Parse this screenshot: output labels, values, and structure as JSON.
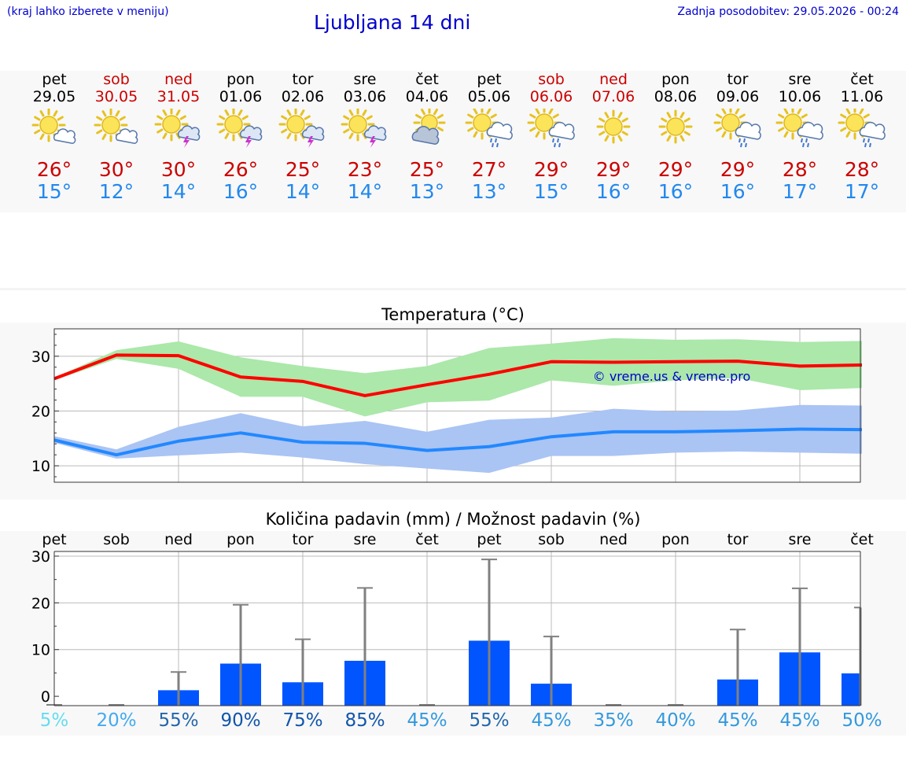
{
  "header": {
    "menu_note": "(kraj lahko izberete v meniju)",
    "title": "Ljubljana 14 dni",
    "last_update": "Zadnja posodobitev: 29.05.2026 - 00:24"
  },
  "days": [
    {
      "name": "pet",
      "date": "29.05",
      "weekend": false,
      "icon": "sun-cloud-icon",
      "tmax": "26°",
      "tmin": "15°"
    },
    {
      "name": "sob",
      "date": "30.05",
      "weekend": true,
      "icon": "sun-cloud-icon",
      "tmax": "30°",
      "tmin": "12°"
    },
    {
      "name": "ned",
      "date": "31.05",
      "weekend": true,
      "icon": "sun-storm-icon",
      "tmax": "30°",
      "tmin": "14°"
    },
    {
      "name": "pon",
      "date": "01.06",
      "weekend": false,
      "icon": "sun-storm-icon",
      "tmax": "26°",
      "tmin": "16°"
    },
    {
      "name": "tor",
      "date": "02.06",
      "weekend": false,
      "icon": "sun-storm-icon",
      "tmax": "25°",
      "tmin": "14°"
    },
    {
      "name": "sre",
      "date": "03.06",
      "weekend": false,
      "icon": "sun-storm-icon",
      "tmax": "23°",
      "tmin": "14°"
    },
    {
      "name": "čet",
      "date": "04.06",
      "weekend": false,
      "icon": "cloud-sun-icon",
      "tmax": "25°",
      "tmin": "13°"
    },
    {
      "name": "pet",
      "date": "05.06",
      "weekend": false,
      "icon": "sun-rain-icon",
      "tmax": "27°",
      "tmin": "13°"
    },
    {
      "name": "sob",
      "date": "06.06",
      "weekend": true,
      "icon": "sun-rain-icon",
      "tmax": "29°",
      "tmin": "15°"
    },
    {
      "name": "ned",
      "date": "07.06",
      "weekend": true,
      "icon": "sun-icon",
      "tmax": "29°",
      "tmin": "16°"
    },
    {
      "name": "pon",
      "date": "08.06",
      "weekend": false,
      "icon": "sun-icon",
      "tmax": "29°",
      "tmin": "16°"
    },
    {
      "name": "tor",
      "date": "09.06",
      "weekend": false,
      "icon": "sun-rain-icon",
      "tmax": "29°",
      "tmin": "16°"
    },
    {
      "name": "sre",
      "date": "10.06",
      "weekend": false,
      "icon": "sun-rain-icon",
      "tmax": "28°",
      "tmin": "17°"
    },
    {
      "name": "čet",
      "date": "11.06",
      "weekend": false,
      "icon": "sun-rain-icon",
      "tmax": "28°",
      "tmin": "17°"
    }
  ],
  "colors": {
    "max_line": "#ff0000",
    "max_band": "#abe8aa",
    "min_line": "#2288ff",
    "min_band": "#aac4f4",
    "bar": "#0055ff",
    "whisker": "#808080",
    "watermark": "#0000cc"
  },
  "chart_data": [
    {
      "type": "line",
      "title": "Temperatura (°C)",
      "categories": [
        "pet",
        "sob",
        "ned",
        "pon",
        "tor",
        "sre",
        "čet",
        "pet",
        "sob",
        "ned",
        "pon",
        "tor",
        "sre",
        "čet"
      ],
      "ylim": [
        7,
        35
      ],
      "yticks": [
        10,
        20,
        30
      ],
      "grid": true,
      "watermark": "© vreme.us & vreme.pro",
      "series": [
        {
          "values": [
            25.9,
            30.2,
            30.1,
            26.2,
            25.4,
            22.8,
            24.8,
            26.7,
            29.0,
            28.9,
            29.0,
            29.1,
            28.2,
            28.4
          ]
        },
        {
          "values": [
            14.7,
            12.0,
            14.5,
            16.0,
            14.3,
            14.1,
            12.8,
            13.5,
            15.3,
            16.2,
            16.2,
            16.4,
            16.7,
            16.6
          ]
        }
      ],
      "bands": [
        {
          "low": [
            25.6,
            29.5,
            27.7,
            22.6,
            22.6,
            19.0,
            21.6,
            21.9,
            25.6,
            24.6,
            25.6,
            26.0,
            23.8,
            24.2
          ],
          "high": [
            26.1,
            31.1,
            32.7,
            29.8,
            28.2,
            26.9,
            28.2,
            31.5,
            32.3,
            33.3,
            33.0,
            33.1,
            32.6,
            32.8
          ]
        },
        {
          "low": [
            14.2,
            11.3,
            11.9,
            12.4,
            11.5,
            10.3,
            9.5,
            8.7,
            11.8,
            11.8,
            12.4,
            12.6,
            12.4,
            12.2
          ],
          "high": [
            15.4,
            13.0,
            17.1,
            19.6,
            17.2,
            18.2,
            16.2,
            18.4,
            18.8,
            20.4,
            19.9,
            20.1,
            21.1,
            21.0
          ]
        }
      ]
    },
    {
      "type": "bar",
      "title": "Količina padavin (mm) / Možnost padavin (%)",
      "categories": [
        "pet",
        "sob",
        "ned",
        "pon",
        "tor",
        "sre",
        "čet",
        "pet",
        "sob",
        "ned",
        "pon",
        "tor",
        "sre",
        "čet"
      ],
      "ylim": [
        -2,
        31
      ],
      "yticks": [
        0,
        10,
        20,
        30
      ],
      "grid": true,
      "values": [
        0,
        0,
        1.3,
        7.0,
        3.0,
        7.6,
        0,
        11.9,
        2.7,
        0,
        0,
        3.6,
        9.4,
        4.9
      ],
      "max_values": [
        0,
        0,
        5.2,
        19.6,
        12.2,
        23.2,
        0,
        29.3,
        12.8,
        0,
        0,
        14.3,
        23.1,
        19.0
      ],
      "probability": [
        "5%",
        "20%",
        "55%",
        "90%",
        "75%",
        "85%",
        "45%",
        "55%",
        "45%",
        "35%",
        "40%",
        "45%",
        "45%",
        "50%"
      ],
      "probability_values": [
        5,
        20,
        55,
        90,
        75,
        85,
        45,
        55,
        45,
        35,
        40,
        45,
        45,
        50
      ]
    }
  ]
}
